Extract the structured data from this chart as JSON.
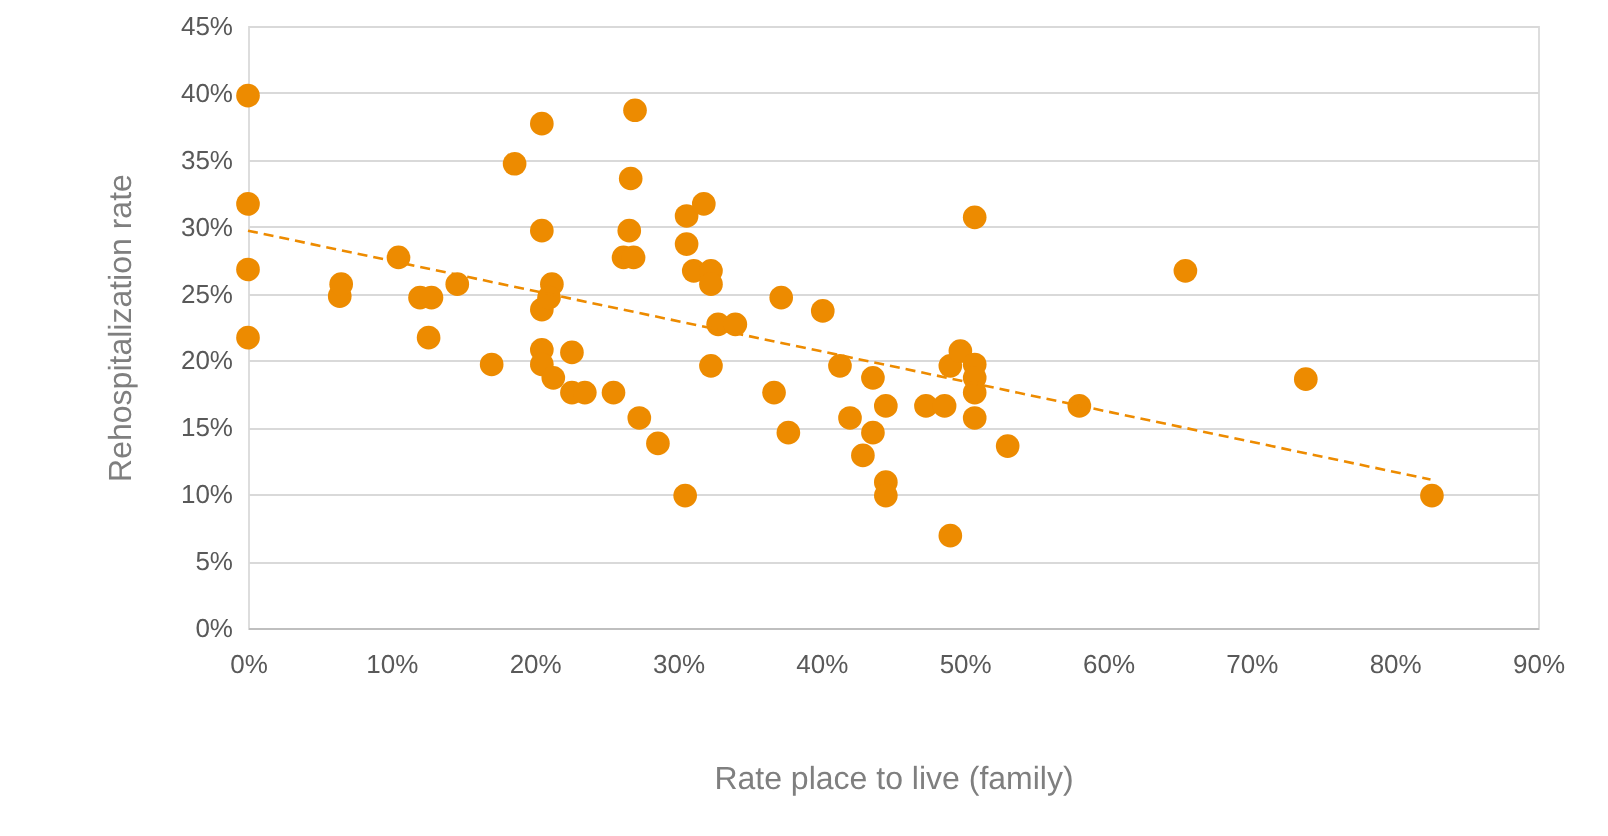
{
  "chart_data": {
    "type": "scatter",
    "xlabel": "Rate place to live (family)",
    "ylabel": "Rehospitalization rate",
    "xlim": [
      0,
      90
    ],
    "ylim": [
      0,
      45
    ],
    "xticks": [
      {
        "value": 0,
        "label": "0%"
      },
      {
        "value": 10,
        "label": "10%"
      },
      {
        "value": 20,
        "label": "20%"
      },
      {
        "value": 30,
        "label": "30%"
      },
      {
        "value": 40,
        "label": "40%"
      },
      {
        "value": 50,
        "label": "50%"
      },
      {
        "value": 60,
        "label": "60%"
      },
      {
        "value": 70,
        "label": "70%"
      },
      {
        "value": 80,
        "label": "80%"
      },
      {
        "value": 90,
        "label": "90%"
      }
    ],
    "yticks": [
      {
        "value": 0,
        "label": "0%"
      },
      {
        "value": 5,
        "label": "5%"
      },
      {
        "value": 10,
        "label": "10%"
      },
      {
        "value": 15,
        "label": "15%"
      },
      {
        "value": 20,
        "label": "20%"
      },
      {
        "value": 25,
        "label": "25%"
      },
      {
        "value": 30,
        "label": "30%"
      },
      {
        "value": 35,
        "label": "35%"
      },
      {
        "value": 40,
        "label": "40%"
      },
      {
        "value": 45,
        "label": "45%"
      }
    ],
    "grid": "y",
    "marker": "circle",
    "series": [
      {
        "color": "#ed8b00",
        "x": [
          0,
          0,
          0,
          0,
          6.4,
          6.5,
          10.5,
          12,
          12.8,
          12.6,
          14.6,
          17,
          18.6,
          20.5,
          20.5,
          20.5,
          21.2,
          21,
          20.5,
          20.5,
          21.3,
          22.6,
          23.5,
          22.6,
          25.5,
          27.3,
          28.6,
          30.5,
          27,
          26.7,
          26.6,
          26.2,
          26.9,
          30.6,
          31.8,
          30.6,
          31.1,
          32.3,
          32.3,
          32.8,
          34,
          32.3,
          37.2,
          40.1,
          36.7,
          37.7,
          41.3,
          42,
          43.6,
          43.6,
          42.9,
          44.5,
          44.5,
          44.5,
          47.3,
          48.6,
          49,
          49,
          49.7,
          50.7,
          50.7,
          50.7,
          50.7,
          50.7,
          53,
          58,
          65.4,
          73.8,
          82.6
        ],
        "values": [
          39.8,
          31.7,
          26.8,
          21.7,
          24.8,
          25.7,
          27.7,
          24.7,
          24.7,
          21.7,
          25.7,
          19.7,
          34.7,
          37.7,
          29.7,
          23.8,
          25.7,
          24.7,
          20.8,
          19.7,
          18.7,
          17.6,
          17.6,
          20.6,
          17.6,
          15.7,
          13.8,
          9.9,
          38.7,
          33.6,
          29.7,
          27.7,
          27.7,
          30.8,
          31.7,
          28.7,
          26.7,
          26.7,
          25.7,
          22.7,
          22.7,
          19.6,
          24.7,
          23.7,
          17.6,
          14.6,
          19.6,
          15.7,
          18.7,
          14.6,
          12.9,
          16.6,
          10.9,
          9.9,
          16.6,
          16.6,
          6.9,
          19.6,
          20.7,
          19.7,
          18.7,
          17.6,
          15.7,
          30.7,
          13.6,
          16.6,
          26.7,
          18.6,
          9.9
        ]
      },
      {
        "color": "#ed8b00",
        "type": "line",
        "marker": "none",
        "line_style": "dashed",
        "x": [
          0,
          82.5
        ],
        "values": [
          29.7,
          11.1
        ]
      }
    ]
  }
}
